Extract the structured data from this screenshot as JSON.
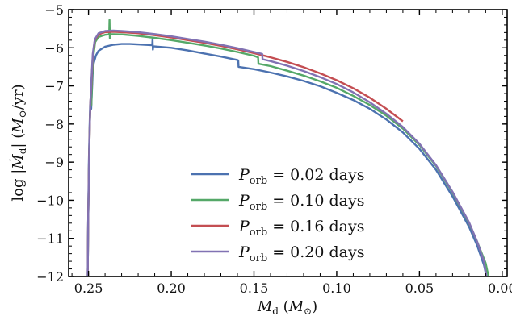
{
  "chart_data": {
    "type": "line",
    "title": "",
    "xlabel_parts": {
      "main": "M",
      "sub": "d",
      "unit_open": " (",
      "unit": "M",
      "unit_sub": "⊙",
      "unit_close": ")"
    },
    "ylabel_parts": {
      "prefix": "log |",
      "main": "Ṁ",
      "sub": "d",
      "mid": "| (",
      "unit": "M",
      "unit_sub": "⊙",
      "tail": "/yr)"
    },
    "xlim": [
      0.262,
      -0.003
    ],
    "ylim": [
      -12,
      -5
    ],
    "x_ticks": [
      0.25,
      0.2,
      0.15,
      0.1,
      0.05,
      0.0
    ],
    "x_tick_labels": [
      "0.25",
      "0.20",
      "0.15",
      "0.10",
      "0.05",
      "0.00"
    ],
    "y_ticks": [
      -12,
      -11,
      -10,
      -9,
      -8,
      -7,
      -6,
      -5
    ],
    "y_tick_labels": [
      "−12",
      "−11",
      "−10",
      "−9",
      "−8",
      "−7",
      "−6",
      "−5"
    ],
    "grid": false,
    "legend_position": "lower-center",
    "series": [
      {
        "name": "P_orb = 0.02 days",
        "label_main": "P",
        "label_sub": "orb",
        "label_text": " = 0.02 days",
        "color": "#4c72b0",
        "points": [
          [
            0.2505,
            -12.0
          ],
          [
            0.2502,
            -10.5
          ],
          [
            0.2498,
            -9.0
          ],
          [
            0.2493,
            -8.0
          ],
          [
            0.249,
            -7.5
          ],
          [
            0.2487,
            -7.3
          ],
          [
            0.2484,
            -7.6
          ],
          [
            0.248,
            -7.2
          ],
          [
            0.2475,
            -6.7
          ],
          [
            0.2468,
            -6.4
          ],
          [
            0.2455,
            -6.2
          ],
          [
            0.244,
            -6.08
          ],
          [
            0.24,
            -5.97
          ],
          [
            0.235,
            -5.92
          ],
          [
            0.23,
            -5.9
          ],
          [
            0.225,
            -5.9
          ],
          [
            0.2115,
            -5.93
          ],
          [
            0.2113,
            -5.77
          ],
          [
            0.2111,
            -6.05
          ],
          [
            0.2109,
            -5.96
          ],
          [
            0.2,
            -6.0
          ],
          [
            0.19,
            -6.07
          ],
          [
            0.18,
            -6.15
          ],
          [
            0.17,
            -6.23
          ],
          [
            0.16,
            -6.32
          ],
          [
            0.1595,
            -6.33
          ],
          [
            0.1593,
            -6.5
          ],
          [
            0.15,
            -6.56
          ],
          [
            0.14,
            -6.65
          ],
          [
            0.13,
            -6.75
          ],
          [
            0.12,
            -6.87
          ],
          [
            0.11,
            -7.01
          ],
          [
            0.1,
            -7.18
          ],
          [
            0.09,
            -7.37
          ],
          [
            0.08,
            -7.6
          ],
          [
            0.07,
            -7.88
          ],
          [
            0.06,
            -8.22
          ],
          [
            0.05,
            -8.65
          ],
          [
            0.04,
            -9.2
          ],
          [
            0.03,
            -9.9
          ],
          [
            0.02,
            -10.7
          ],
          [
            0.015,
            -11.2
          ],
          [
            0.011,
            -11.7
          ],
          [
            0.0095,
            -12.0
          ]
        ]
      },
      {
        "name": "P_orb = 0.10 days",
        "label_main": "P",
        "label_sub": "orb",
        "label_text": " = 0.10 days",
        "color": "#55a868",
        "points": [
          [
            0.2505,
            -12.0
          ],
          [
            0.2502,
            -10.5
          ],
          [
            0.2497,
            -9.0
          ],
          [
            0.2492,
            -8.0
          ],
          [
            0.2489,
            -7.6
          ],
          [
            0.2486,
            -7.4
          ],
          [
            0.2483,
            -7.5
          ],
          [
            0.2478,
            -6.8
          ],
          [
            0.247,
            -6.2
          ],
          [
            0.246,
            -5.85
          ],
          [
            0.244,
            -5.72
          ],
          [
            0.24,
            -5.66
          ],
          [
            0.2375,
            -5.65
          ],
          [
            0.2373,
            -5.27
          ],
          [
            0.2371,
            -5.75
          ],
          [
            0.2369,
            -5.64
          ],
          [
            0.23,
            -5.65
          ],
          [
            0.22,
            -5.69
          ],
          [
            0.21,
            -5.74
          ],
          [
            0.2,
            -5.8
          ],
          [
            0.19,
            -5.87
          ],
          [
            0.18,
            -5.94
          ],
          [
            0.17,
            -6.02
          ],
          [
            0.16,
            -6.11
          ],
          [
            0.15,
            -6.21
          ],
          [
            0.1475,
            -6.25
          ],
          [
            0.1473,
            -6.42
          ],
          [
            0.14,
            -6.48
          ],
          [
            0.13,
            -6.6
          ],
          [
            0.12,
            -6.73
          ],
          [
            0.11,
            -6.88
          ],
          [
            0.1,
            -7.05
          ],
          [
            0.09,
            -7.26
          ],
          [
            0.08,
            -7.5
          ],
          [
            0.07,
            -7.78
          ],
          [
            0.06,
            -8.12
          ],
          [
            0.05,
            -8.55
          ],
          [
            0.04,
            -9.1
          ],
          [
            0.03,
            -9.8
          ],
          [
            0.02,
            -10.6
          ],
          [
            0.015,
            -11.1
          ],
          [
            0.01,
            -11.65
          ],
          [
            0.009,
            -11.85
          ],
          [
            0.0082,
            -12.0
          ]
        ]
      },
      {
        "name": "P_orb = 0.16 days",
        "label_main": "P",
        "label_sub": "orb",
        "label_text": " = 0.16 days",
        "color": "#c44e52",
        "points": [
          [
            0.2505,
            -12.0
          ],
          [
            0.2502,
            -10.5
          ],
          [
            0.2497,
            -9.0
          ],
          [
            0.2492,
            -8.0
          ],
          [
            0.2488,
            -7.4
          ],
          [
            0.2482,
            -6.9
          ],
          [
            0.2474,
            -6.2
          ],
          [
            0.2462,
            -5.8
          ],
          [
            0.244,
            -5.65
          ],
          [
            0.24,
            -5.59
          ],
          [
            0.235,
            -5.58
          ],
          [
            0.23,
            -5.59
          ],
          [
            0.22,
            -5.62
          ],
          [
            0.21,
            -5.67
          ],
          [
            0.2,
            -5.73
          ],
          [
            0.19,
            -5.8
          ],
          [
            0.18,
            -5.87
          ],
          [
            0.17,
            -5.95
          ],
          [
            0.16,
            -6.04
          ],
          [
            0.15,
            -6.14
          ],
          [
            0.14,
            -6.25
          ],
          [
            0.13,
            -6.37
          ],
          [
            0.12,
            -6.51
          ],
          [
            0.11,
            -6.67
          ],
          [
            0.1,
            -6.85
          ],
          [
            0.09,
            -7.06
          ],
          [
            0.08,
            -7.31
          ],
          [
            0.07,
            -7.6
          ],
          [
            0.06,
            -7.93
          ]
        ]
      },
      {
        "name": "P_orb = 0.20 days",
        "label_main": "P",
        "label_sub": "orb",
        "label_text": " = 0.20 days",
        "color": "#8172b3",
        "points": [
          [
            0.2505,
            -12.0
          ],
          [
            0.2502,
            -10.5
          ],
          [
            0.2497,
            -9.0
          ],
          [
            0.2492,
            -8.0
          ],
          [
            0.2488,
            -7.4
          ],
          [
            0.2482,
            -6.8
          ],
          [
            0.2474,
            -6.15
          ],
          [
            0.2462,
            -5.78
          ],
          [
            0.244,
            -5.62
          ],
          [
            0.24,
            -5.56
          ],
          [
            0.235,
            -5.55
          ],
          [
            0.23,
            -5.56
          ],
          [
            0.22,
            -5.59
          ],
          [
            0.21,
            -5.64
          ],
          [
            0.2,
            -5.7
          ],
          [
            0.19,
            -5.77
          ],
          [
            0.18,
            -5.84
          ],
          [
            0.17,
            -5.92
          ],
          [
            0.16,
            -6.01
          ],
          [
            0.15,
            -6.11
          ],
          [
            0.145,
            -6.16
          ],
          [
            0.1448,
            -6.3
          ],
          [
            0.14,
            -6.35
          ],
          [
            0.13,
            -6.47
          ],
          [
            0.12,
            -6.61
          ],
          [
            0.11,
            -6.77
          ],
          [
            0.1,
            -6.95
          ],
          [
            0.09,
            -7.17
          ],
          [
            0.08,
            -7.43
          ],
          [
            0.07,
            -7.73
          ],
          [
            0.06,
            -8.08
          ],
          [
            0.05,
            -8.52
          ],
          [
            0.04,
            -9.08
          ],
          [
            0.03,
            -9.78
          ],
          [
            0.02,
            -10.58
          ],
          [
            0.015,
            -11.1
          ],
          [
            0.011,
            -11.6
          ],
          [
            0.0095,
            -12.0
          ]
        ]
      }
    ]
  }
}
